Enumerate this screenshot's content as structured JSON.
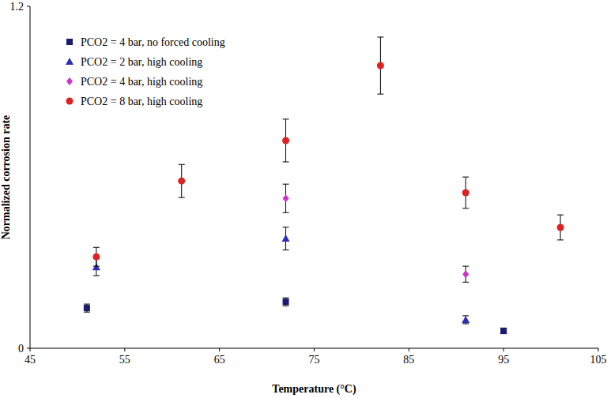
{
  "chart_data": {
    "type": "scatter",
    "x_label": "Temperature (°C)",
    "y_label": "Normalized corrosion rate",
    "xlim": [
      45,
      105
    ],
    "xticks": [
      45,
      55,
      65,
      75,
      85,
      95,
      105
    ],
    "ylim": [
      0,
      1.2
    ],
    "yticks": [
      0,
      1.2
    ],
    "grid": false,
    "legend": "upper-left",
    "series": [
      {
        "name": "PCO2 = 4 bar, no forced cooling",
        "color": "#1a1a6e",
        "marker": "square",
        "x": [
          51,
          72,
          95
        ],
        "values": [
          0.141,
          0.163,
          0.061
        ],
        "errors": [
          0.014,
          0.014,
          0.01
        ]
      },
      {
        "name": "PCO2 = 2 bar, high cooling",
        "color": "#2e2eb8",
        "marker": "triangle",
        "x": [
          52,
          72,
          91
        ],
        "values": [
          0.285,
          0.385,
          0.1
        ],
        "errors": [
          0.03,
          0.04,
          0.014
        ]
      },
      {
        "name": "PCO2 = 4 bar, high cooling",
        "color": "#cc33cc",
        "marker": "diamond",
        "x": [
          72,
          91
        ],
        "values": [
          0.526,
          0.26
        ],
        "errors": [
          0.05,
          0.028
        ]
      },
      {
        "name": "PCO2 = 8 bar, high cooling",
        "color": "#dd2222",
        "marker": "circle",
        "x": [
          52,
          61,
          72,
          82,
          91,
          101
        ],
        "values": [
          0.321,
          0.587,
          0.729,
          0.992,
          0.546,
          0.424
        ],
        "errors": [
          0.033,
          0.058,
          0.075,
          0.1,
          0.055,
          0.044
        ]
      }
    ]
  }
}
